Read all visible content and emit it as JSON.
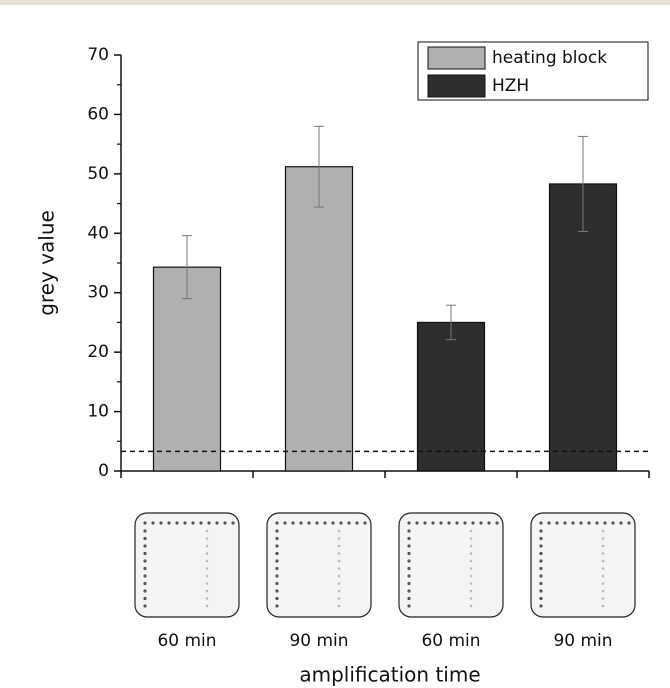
{
  "chart_data": {
    "type": "bar",
    "y_label": "grey value",
    "x_label": "amplification time",
    "categories": [
      "60 min",
      "90 min",
      "60 min",
      "90 min"
    ],
    "series": [
      {
        "name": "heating block",
        "color": "#b0b0b0",
        "values": [
          34.3,
          51.2,
          null,
          null
        ],
        "errors": [
          5.3,
          6.8,
          null,
          null
        ]
      },
      {
        "name": "HZH",
        "color": "#2e2e2e",
        "values": [
          null,
          null,
          25,
          48.3
        ],
        "errors": [
          null,
          null,
          2.9,
          8
        ]
      }
    ],
    "threshold": 3.3,
    "ylim": [
      0,
      70
    ],
    "yticks": [
      0,
      10,
      20,
      30,
      40,
      50,
      60,
      70
    ],
    "yminorticks": [
      5,
      15,
      25,
      35,
      45,
      55,
      65
    ],
    "legend": "top-right"
  }
}
